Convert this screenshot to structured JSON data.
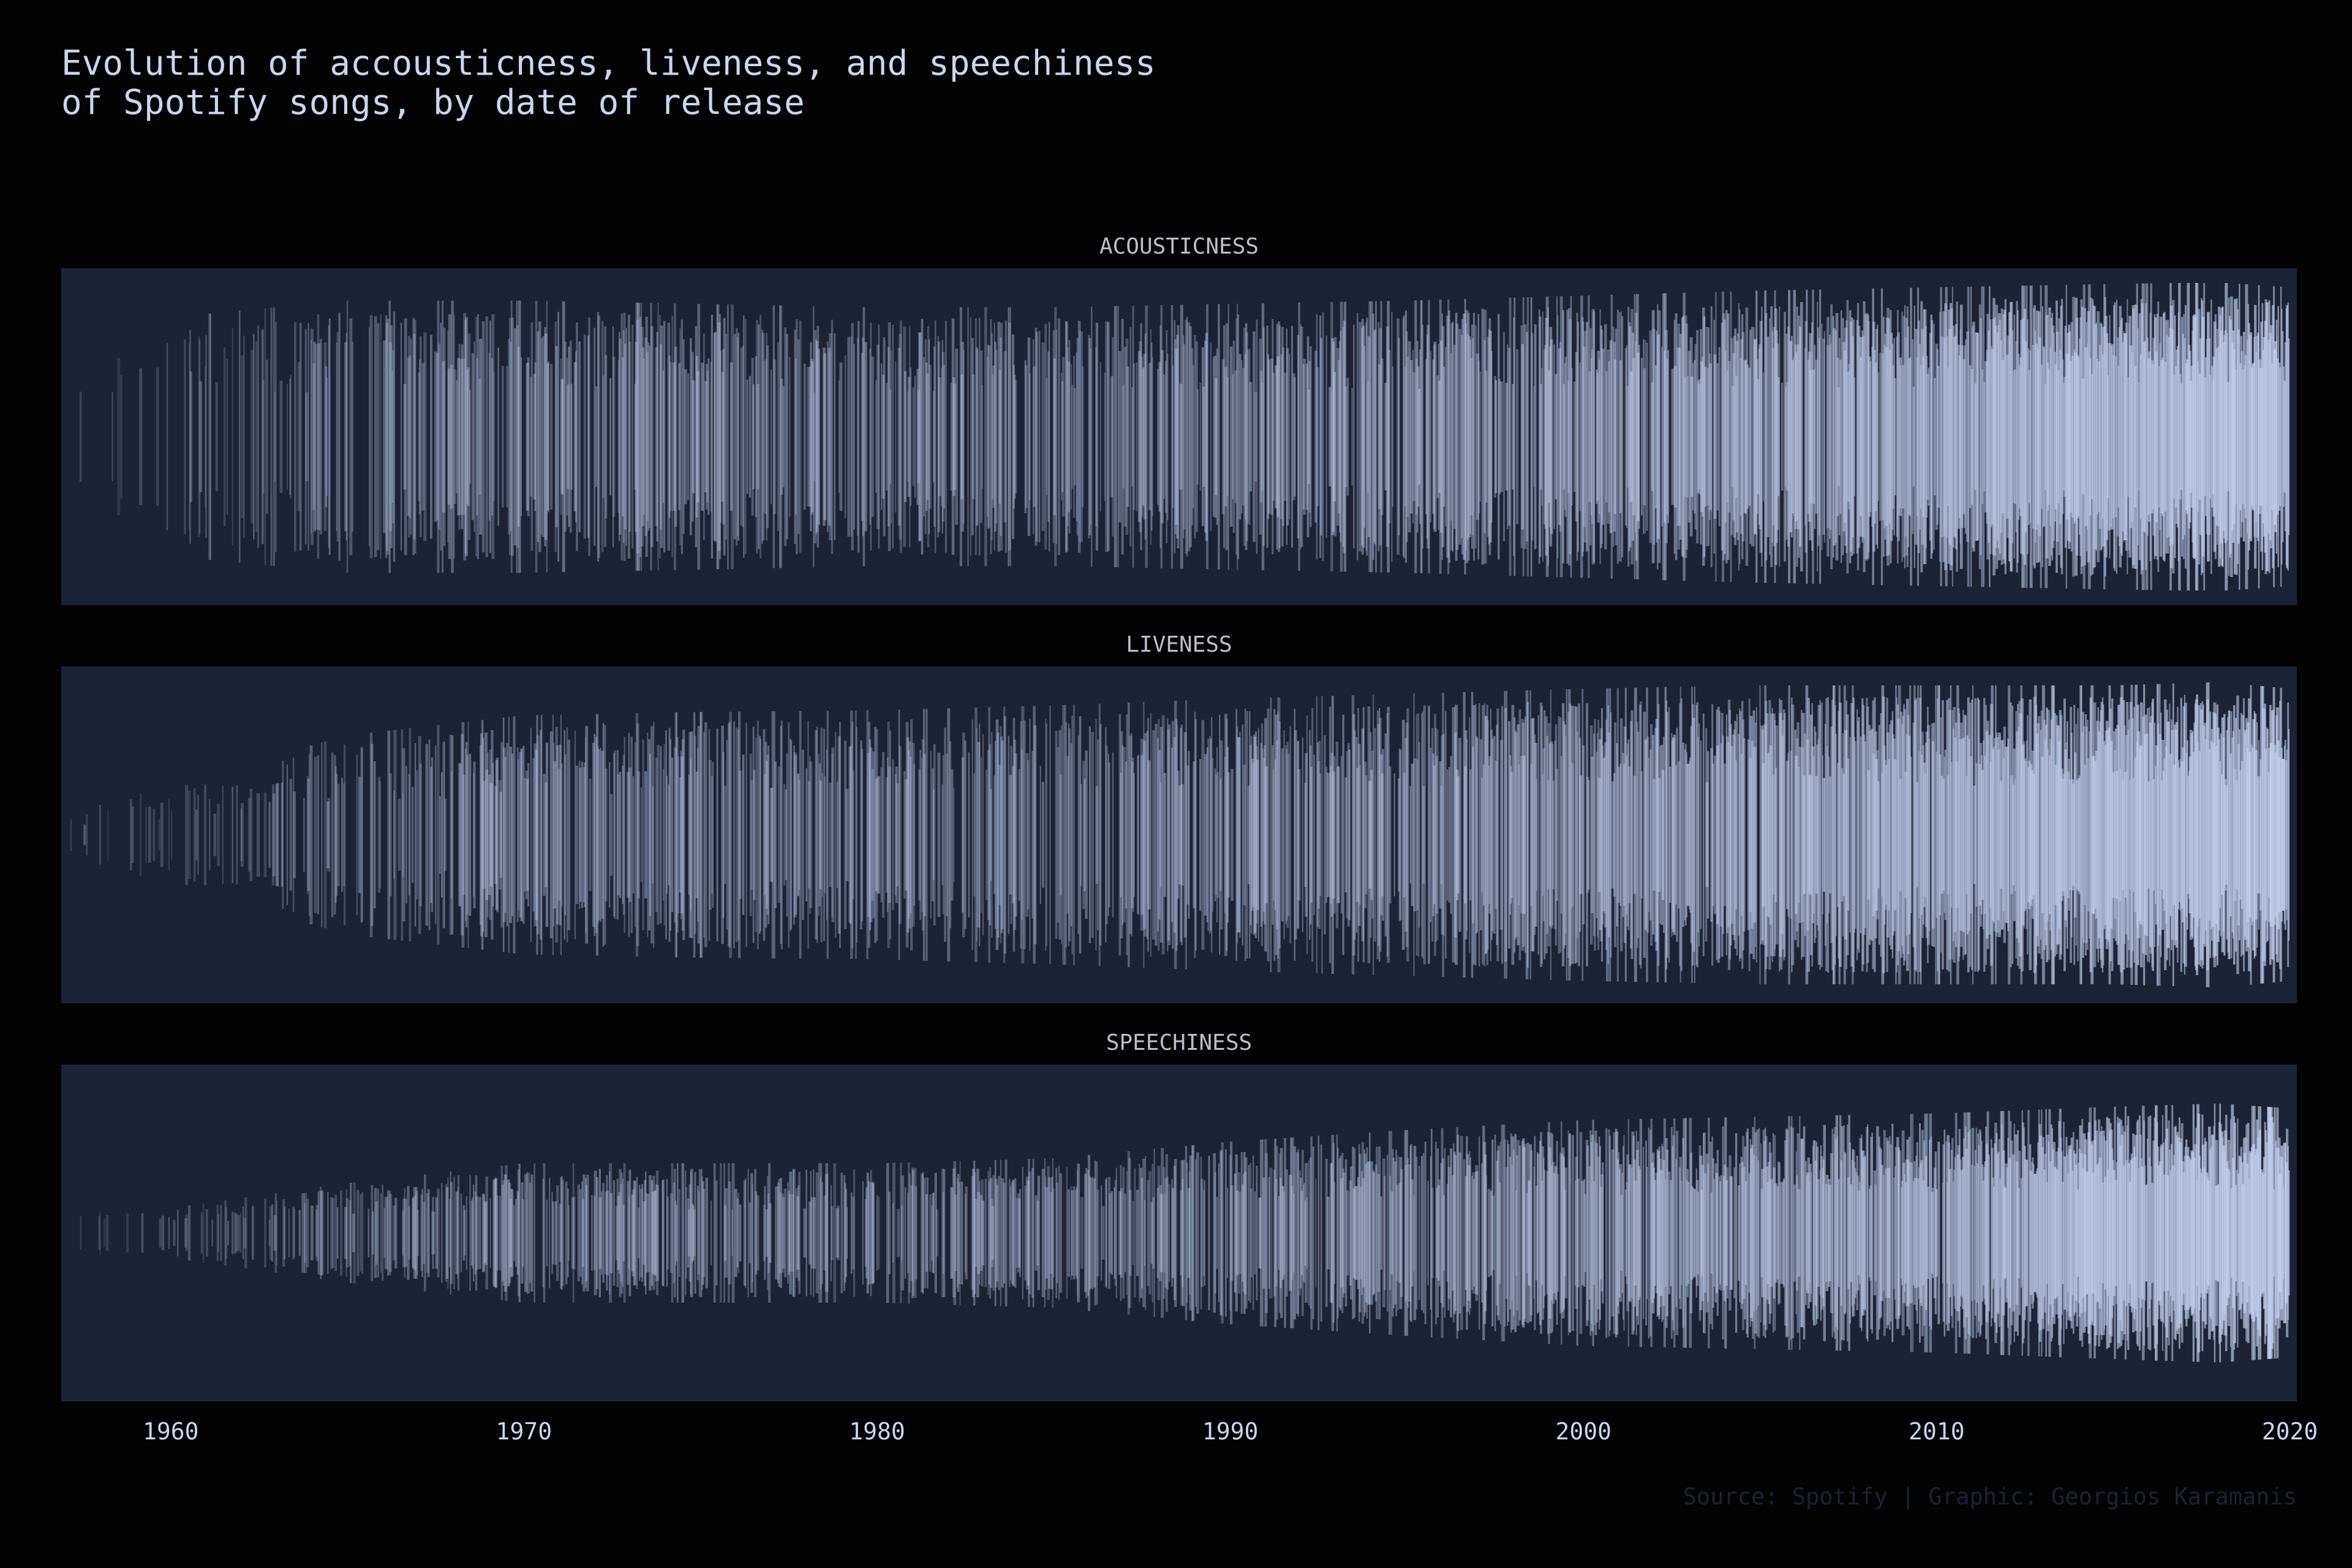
{
  "title_lines": [
    "Evolution of accousticness, liveness, and speechiness",
    "of Spotify songs, by date of release"
  ],
  "caption": "Source: Spotify | Graphic: Georgios Karamanis",
  "colors": {
    "background": "#030303",
    "panel": "#1c2336",
    "line": "#c8d8f6",
    "text": "#c9d6ee",
    "strip_text": "#b9bfca",
    "caption": "#1b2233"
  },
  "chart_data": {
    "type": "area",
    "chart_form": "mirrored amplitude strips (symmetric about each panel's centre line)",
    "x_axis": {
      "ticks": [
        1960,
        1970,
        1980,
        1990,
        2000,
        2010,
        2020
      ],
      "tick_labels": [
        "1960",
        "1970",
        "1980",
        "1990",
        "2000",
        "2010",
        "2020"
      ],
      "range": [
        1956.9,
        2020.2
      ]
    },
    "y_range": [
      0,
      1
    ],
    "grid": false,
    "panels": [
      {
        "strip": "ACOUSTICNESS",
        "envelope_years": [
          1957,
          1960,
          1965,
          1970,
          1975,
          1980,
          1985,
          1990,
          1995,
          2000,
          2005,
          2010,
          2015,
          2018,
          2020
        ],
        "envelope_values": [
          0.55,
          0.72,
          0.82,
          0.82,
          0.8,
          0.78,
          0.78,
          0.8,
          0.82,
          0.85,
          0.88,
          0.9,
          0.92,
          0.93,
          0.9
        ],
        "density": [
          0.0,
          0.1,
          0.3,
          0.4,
          0.38,
          0.35,
          0.38,
          0.42,
          0.48,
          0.55,
          0.62,
          0.7,
          0.82,
          0.95,
          1.0
        ]
      },
      {
        "strip": "LIVENESS",
        "envelope_years": [
          1957,
          1960,
          1965,
          1970,
          1975,
          1980,
          1985,
          1990,
          1995,
          2000,
          2005,
          2010,
          2015,
          2018,
          2020
        ],
        "envelope_values": [
          0.12,
          0.3,
          0.6,
          0.72,
          0.74,
          0.75,
          0.78,
          0.82,
          0.85,
          0.88,
          0.9,
          0.9,
          0.9,
          0.92,
          0.88
        ],
        "density": [
          0.0,
          0.1,
          0.3,
          0.4,
          0.38,
          0.35,
          0.38,
          0.42,
          0.48,
          0.55,
          0.62,
          0.7,
          0.82,
          0.95,
          1.0
        ]
      },
      {
        "strip": "SPEECHINESS",
        "envelope_years": [
          1957,
          1960,
          1965,
          1970,
          1975,
          1980,
          1985,
          1990,
          1995,
          2000,
          2005,
          2010,
          2015,
          2018,
          2020
        ],
        "envelope_values": [
          0.12,
          0.15,
          0.3,
          0.42,
          0.42,
          0.42,
          0.45,
          0.55,
          0.62,
          0.68,
          0.7,
          0.72,
          0.76,
          0.78,
          0.75
        ],
        "density": [
          0.0,
          0.1,
          0.3,
          0.4,
          0.38,
          0.35,
          0.38,
          0.42,
          0.48,
          0.55,
          0.62,
          0.7,
          0.82,
          0.95,
          1.0
        ]
      }
    ]
  }
}
